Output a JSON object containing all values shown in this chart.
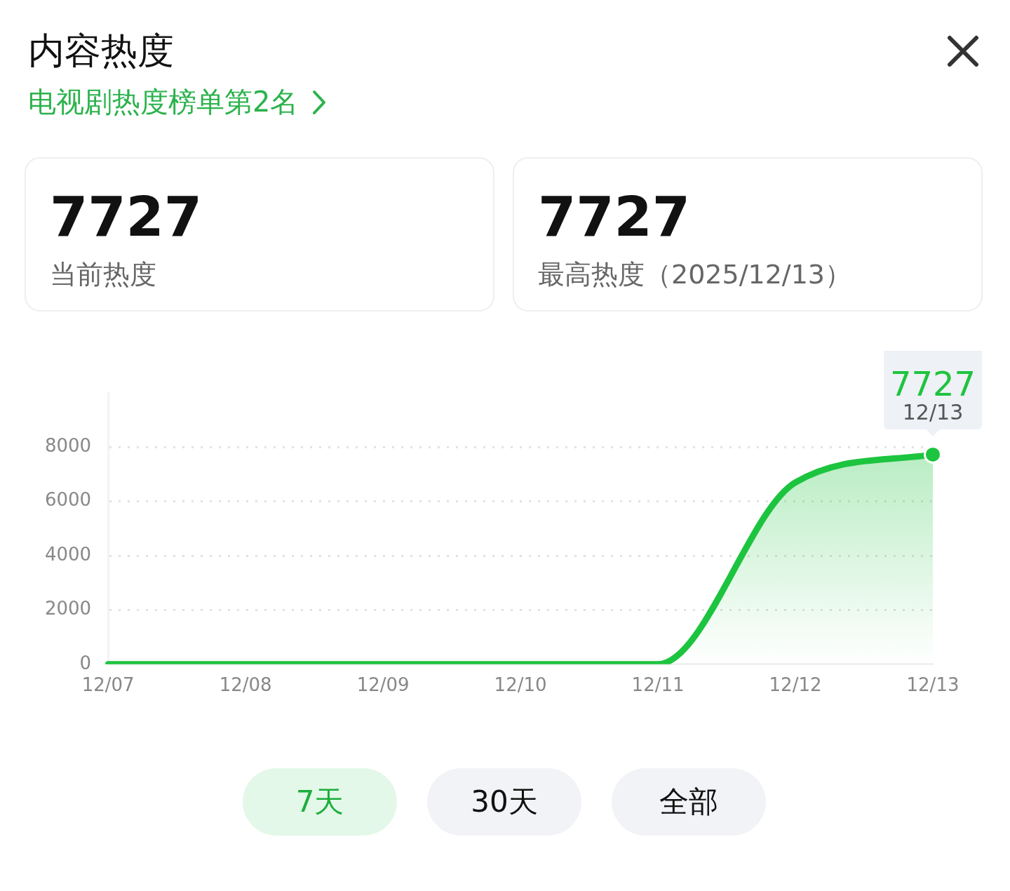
{
  "chart_data": {
    "type": "area",
    "title": "内容热度",
    "subtitle": "电视剧热度榜单第2名",
    "categories": [
      "12/07",
      "12/08",
      "12/09",
      "12/10",
      "12/11",
      "12/12",
      "12/13"
    ],
    "series": [
      {
        "color": "#1dc43f",
        "values": [
          0,
          0,
          0,
          0,
          0,
          6700,
          7727
        ],
        "value_labels": [
          null,
          null,
          null,
          null,
          null,
          null,
          "7727"
        ]
      }
    ],
    "ylim": [
      0,
      10000
    ],
    "yticks": [
      0,
      2000,
      4000,
      6000,
      8000
    ],
    "grid": "y",
    "line_style": "solid",
    "annotations": [
      "7727",
      "当前热度",
      "7727",
      "最高热度（2025/12/13）",
      "7天",
      "30天",
      "全部",
      {
        "text": "12/13",
        "x": "12/13",
        "y": 7727
      }
    ]
  }
}
